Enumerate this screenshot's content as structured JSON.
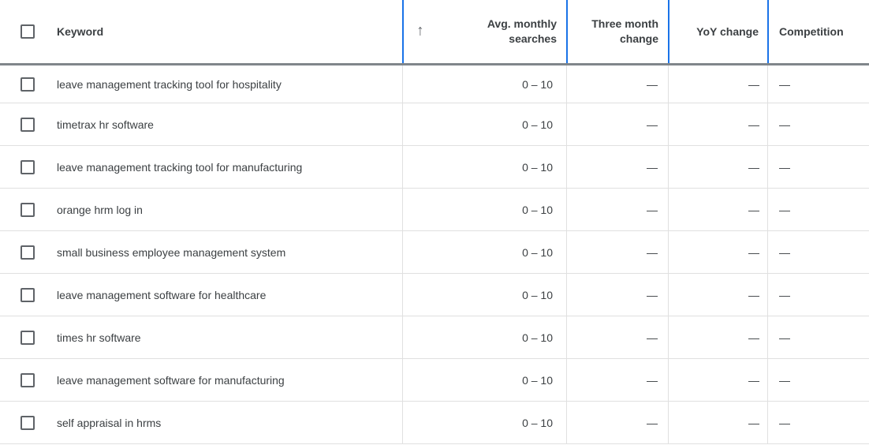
{
  "header": {
    "keyword_label": "Keyword",
    "sort_icon": "↑",
    "avg_monthly_line1": "Avg. monthly",
    "avg_monthly_line2": "searches",
    "three_month_line1": "Three month",
    "three_month_line2": "change",
    "yoy_label": "YoY change",
    "competition_label": "Competition"
  },
  "rows": [
    {
      "keyword": "leave management tracking tool for hospitality",
      "avg_monthly_searches": "0 – 10",
      "three_month_change": "—",
      "yoy_change": "—",
      "competition": "—"
    },
    {
      "keyword": "timetrax hr software",
      "avg_monthly_searches": "0 – 10",
      "three_month_change": "—",
      "yoy_change": "—",
      "competition": "—"
    },
    {
      "keyword": "leave management tracking tool for manufacturing",
      "avg_monthly_searches": "0 – 10",
      "three_month_change": "—",
      "yoy_change": "—",
      "competition": "—"
    },
    {
      "keyword": "orange hrm log in",
      "avg_monthly_searches": "0 – 10",
      "three_month_change": "—",
      "yoy_change": "—",
      "competition": "—"
    },
    {
      "keyword": "small business employee management system",
      "avg_monthly_searches": "0 – 10",
      "three_month_change": "—",
      "yoy_change": "—",
      "competition": "—"
    },
    {
      "keyword": "leave management software for healthcare",
      "avg_monthly_searches": "0 – 10",
      "three_month_change": "—",
      "yoy_change": "—",
      "competition": "—"
    },
    {
      "keyword": "times hr software",
      "avg_monthly_searches": "0 – 10",
      "three_month_change": "—",
      "yoy_change": "—",
      "competition": "—"
    },
    {
      "keyword": "leave management software for manufacturing",
      "avg_monthly_searches": "0 – 10",
      "three_month_change": "—",
      "yoy_change": "—",
      "competition": "—"
    },
    {
      "keyword": "self appraisal in hrms",
      "avg_monthly_searches": "0 – 10",
      "three_month_change": "—",
      "yoy_change": "—",
      "competition": "—"
    }
  ],
  "colors": {
    "accent_blue_divider": "#1a73e8",
    "text": "#3c4043",
    "row_border": "#e0e0e0",
    "header_shadow": "#80868b"
  }
}
